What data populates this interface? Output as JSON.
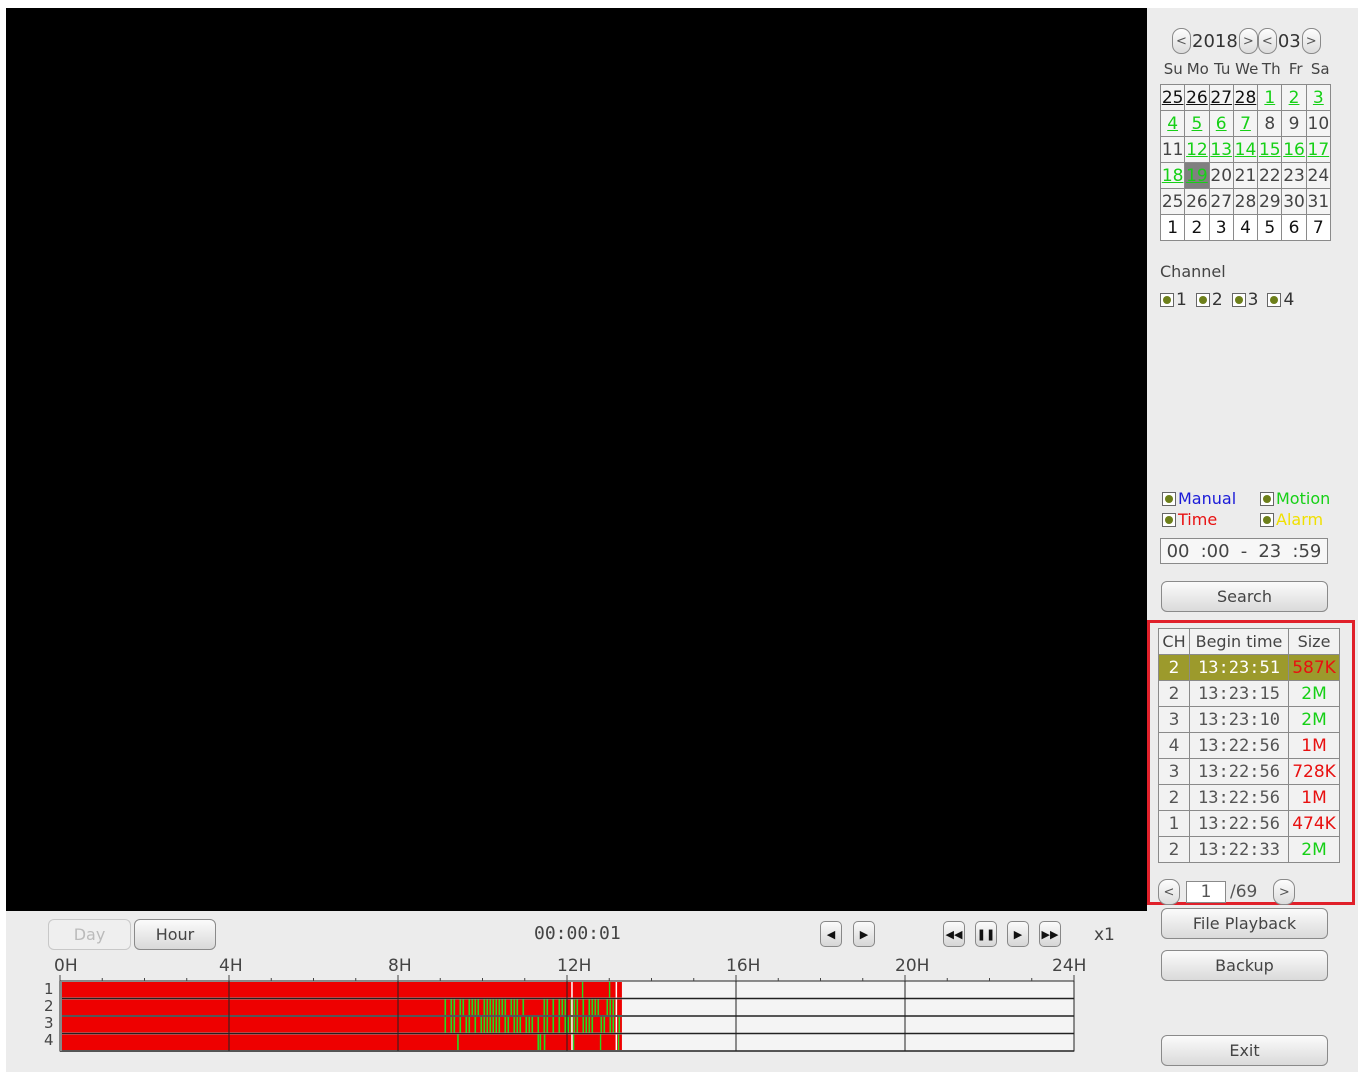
{
  "calendar": {
    "year": "2018",
    "month": "03",
    "weekdays": [
      "Su",
      "Mo",
      "Tu",
      "We",
      "Th",
      "Fr",
      "Sa"
    ],
    "weeks": [
      [
        "25",
        "26",
        "27",
        "28",
        "1",
        "2",
        "3"
      ],
      [
        "4",
        "5",
        "6",
        "7",
        "8",
        "9",
        "10"
      ],
      [
        "11",
        "12",
        "13",
        "14",
        "15",
        "16",
        "17"
      ],
      [
        "18",
        "19",
        "20",
        "21",
        "22",
        "23",
        "24"
      ],
      [
        "25",
        "26",
        "27",
        "28",
        "29",
        "30",
        "31"
      ],
      [
        "1",
        "2",
        "3",
        "4",
        "5",
        "6",
        "7"
      ]
    ],
    "recorded_days": [
      "1",
      "2",
      "3",
      "4",
      "5",
      "6",
      "7",
      "12",
      "13",
      "14",
      "15",
      "16",
      "17",
      "18"
    ],
    "selected_day": "19"
  },
  "channel": {
    "label": "Channel",
    "items": [
      "1",
      "2",
      "3",
      "4"
    ]
  },
  "record_types": [
    {
      "label": "Manual",
      "color": "#1a1ad8"
    },
    {
      "label": "Motion",
      "color": "#16d016"
    },
    {
      "label": "Time",
      "color": "#e81010"
    },
    {
      "label": "Alarm",
      "color": "#f0e000"
    }
  ],
  "time_range": {
    "h1": "00",
    "m1": ":00",
    "sep": "-",
    "h2": "23",
    "m2": ":59"
  },
  "buttons": {
    "search": "Search",
    "file_playback": "File Playback",
    "backup": "Backup",
    "exit": "Exit",
    "day": "Day",
    "hour": "Hour"
  },
  "results": {
    "headers": [
      "CH",
      "Begin time",
      "Size"
    ],
    "rows": [
      {
        "ch": "2",
        "time": "13:23:51",
        "size": "587K",
        "size_color": "#e81010"
      },
      {
        "ch": "2",
        "time": "13:23:15",
        "size": "2M",
        "size_color": "#16d016"
      },
      {
        "ch": "3",
        "time": "13:23:10",
        "size": "2M",
        "size_color": "#16d016"
      },
      {
        "ch": "4",
        "time": "13:22:56",
        "size": "1M",
        "size_color": "#e81010"
      },
      {
        "ch": "3",
        "time": "13:22:56",
        "size": "728K",
        "size_color": "#e81010"
      },
      {
        "ch": "2",
        "time": "13:22:56",
        "size": "1M",
        "size_color": "#e81010"
      },
      {
        "ch": "1",
        "time": "13:22:56",
        "size": "474K",
        "size_color": "#e81010"
      },
      {
        "ch": "2",
        "time": "13:22:33",
        "size": "2M",
        "size_color": "#16d016"
      }
    ],
    "page": "1",
    "total_pages": "/69"
  },
  "playback": {
    "timecode": "00:00:01",
    "speed": "x1"
  },
  "timeline": {
    "hour_labels": [
      "0H",
      "4H",
      "8H",
      "12H",
      "16H",
      "20H",
      "24H"
    ],
    "channels": [
      "1",
      "2",
      "3",
      "4"
    ],
    "recorded_until_hour": 13.3,
    "motion_start_hour": 9.1,
    "record_color": "#ee0000",
    "motion_color": "#22dd22"
  }
}
